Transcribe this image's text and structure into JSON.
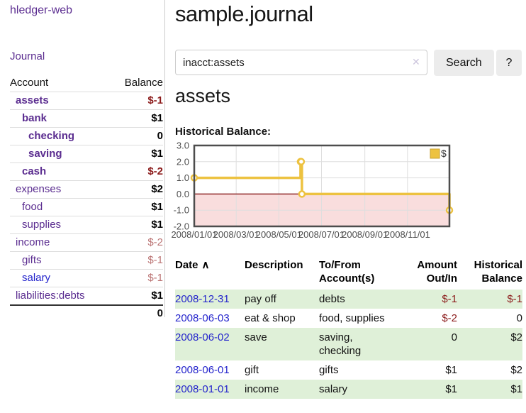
{
  "colors": {
    "link_purple": "#5b2d90",
    "link_blue": "#2424cc",
    "negative_strong": "#8b1a1a",
    "negative_soft": "#bb7474",
    "row_green": "#dff0d8",
    "series_yellow": "#edc240",
    "chart_negative_bg": "#f9dddd",
    "chart_zero_line": "#7a0000",
    "button_bg": "#ececec"
  },
  "sidebar": {
    "brand": "hledger-web",
    "nav_journal": "Journal",
    "accounts": {
      "account_header": "Account",
      "balance_header": "Balance",
      "rows": [
        {
          "name": "assets",
          "balance": "$-1"
        },
        {
          "name": "bank",
          "balance": "$1"
        },
        {
          "name": "checking",
          "balance": "0"
        },
        {
          "name": "saving",
          "balance": "$1"
        },
        {
          "name": "cash",
          "balance": "$-2"
        },
        {
          "name": "expenses",
          "balance": "$2"
        },
        {
          "name": "food",
          "balance": "$1"
        },
        {
          "name": "supplies",
          "balance": "$1"
        },
        {
          "name": "income",
          "balance": "$-2"
        },
        {
          "name": "gifts",
          "balance": "$-1"
        },
        {
          "name": "salary",
          "balance": "$-1"
        },
        {
          "name": "liabilities:debts",
          "balance": "$1"
        }
      ],
      "total": "0"
    }
  },
  "main": {
    "title": "sample.journal",
    "search": {
      "value": "inacct:assets",
      "clear_icon": "✕",
      "button_label": "Search",
      "help_label": "?"
    },
    "account_heading": "assets",
    "chart_label": "Historical Balance:"
  },
  "chart_data": {
    "type": "line",
    "step": true,
    "title": "Historical Balance:",
    "series": [
      {
        "name": "$",
        "color": "#edc240",
        "points": [
          [
            "2008-01-01",
            1
          ],
          [
            "2008-06-01",
            2
          ],
          [
            "2008-06-02",
            2
          ],
          [
            "2008-06-03",
            0
          ],
          [
            "2008-12-31",
            -1
          ]
        ]
      }
    ],
    "yticks": [
      3.0,
      2.0,
      1.0,
      0.0,
      -1.0,
      -2.0
    ],
    "ylim": [
      -2,
      3
    ],
    "xticks": [
      "2008/01/01",
      "2008/03/01",
      "2008/05/01",
      "2008/07/01",
      "2008/09/01",
      "2008/11/01"
    ],
    "xlim": [
      "2008-01-01",
      "2008-12-31"
    ],
    "grid": true,
    "legend_position": "top-right",
    "negative_region_color": "#f9dddd",
    "zero_line_color": "#7a0000"
  },
  "table": {
    "headers": [
      "Date",
      "Description",
      "To/From Account(s)",
      "Amount Out/In",
      "Historical Balance"
    ],
    "sort_icon": "∧",
    "rows": [
      {
        "date": "2008-12-31",
        "description": "pay off",
        "accounts": "debts",
        "amount": "$-1",
        "balance": "$-1"
      },
      {
        "date": "2008-06-03",
        "description": "eat & shop",
        "accounts": "food, supplies",
        "amount": "$-2",
        "balance": "0"
      },
      {
        "date": "2008-06-02",
        "description": "save",
        "accounts": "saving, checking",
        "amount": "0",
        "balance": "$2"
      },
      {
        "date": "2008-06-01",
        "description": "gift",
        "accounts": "gifts",
        "amount": "$1",
        "balance": "$2"
      },
      {
        "date": "2008-01-01",
        "description": "income",
        "accounts": "salary",
        "amount": "$1",
        "balance": "$1"
      }
    ]
  }
}
